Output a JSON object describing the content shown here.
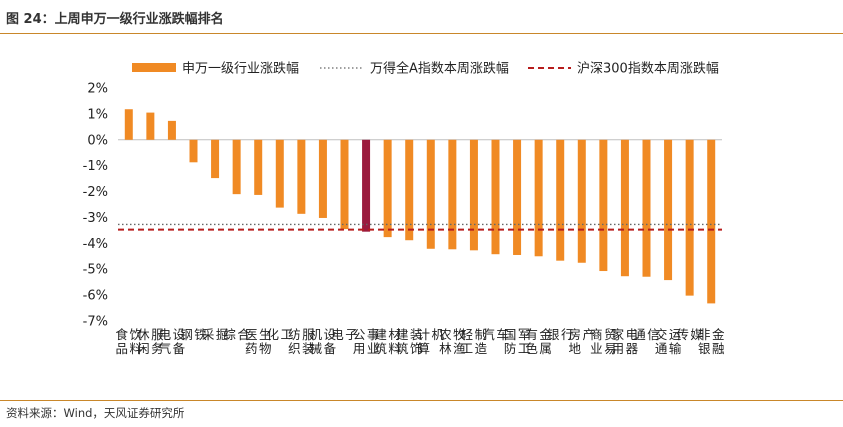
{
  "figure": {
    "title": "图 24：上周申万一级行业涨跌幅排名",
    "source": "资料来源：Wind，天风证券研究所"
  },
  "chart_data": {
    "type": "bar",
    "ylim": [
      -7,
      2
    ],
    "yticks": [
      "2%",
      "1%",
      "0%",
      "-1%",
      "-2%",
      "-3%",
      "-4%",
      "-5%",
      "-6%",
      "-7%"
    ],
    "legend_position": "top",
    "categories": [
      "食品饮料",
      "休闲服务",
      "电气设备",
      "钢铁",
      "采掘",
      "综合",
      "医药生物",
      "化工",
      "纺织服装",
      "机械设备",
      "电子",
      "公用事业",
      "建筑材料",
      "建筑装饰",
      "计算机",
      "农林牧渔",
      "轻工制造",
      "汽车",
      "国防军工",
      "有色金属",
      "银行",
      "房地产",
      "商业贸易",
      "家用电器",
      "通信",
      "交通运输",
      "传媒",
      "非银金融"
    ],
    "series": [
      {
        "name": "申万一级行业涨跌幅",
        "values": [
          1.18,
          1.05,
          0.73,
          -0.87,
          -1.48,
          -2.1,
          -2.13,
          -2.62,
          -2.86,
          -3.02,
          -3.45,
          -3.55,
          -3.76,
          -3.88,
          -4.21,
          -4.23,
          -4.27,
          -4.42,
          -4.45,
          -4.5,
          -4.67,
          -4.75,
          -5.07,
          -5.27,
          -5.29,
          -5.42,
          -6.02,
          -6.32
        ],
        "color": "#f08a24",
        "highlight_index": 11,
        "highlight_color": "#9b1b3e"
      },
      {
        "name": "万得全A指数本周涨跌幅",
        "value": -3.27,
        "style": "dotted",
        "color": "#666666"
      },
      {
        "name": "沪深300指数本周涨跌幅",
        "value": -3.47,
        "style": "dashed",
        "color": "#b71c1c"
      }
    ]
  }
}
